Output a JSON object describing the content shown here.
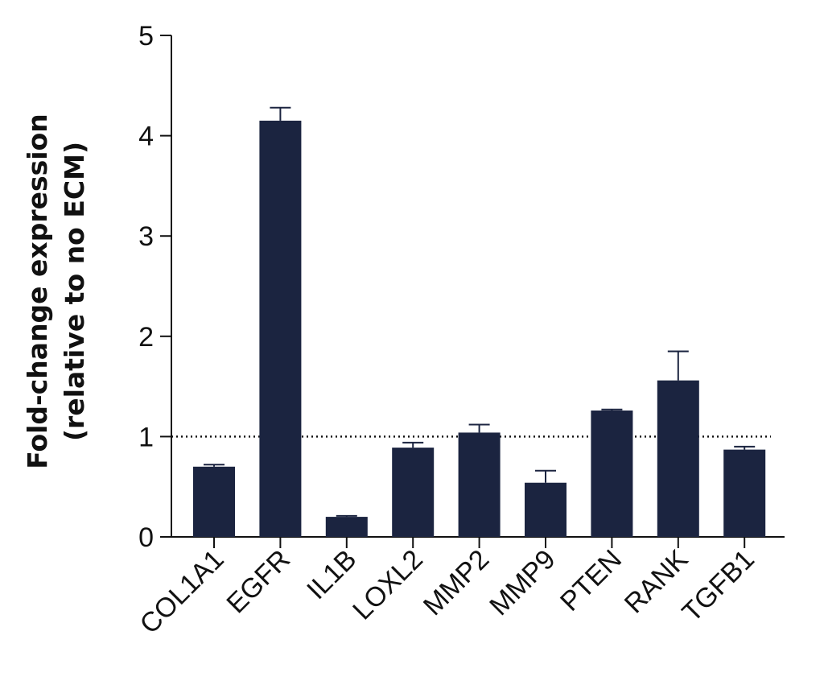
{
  "chart_data": {
    "type": "bar",
    "categories": [
      "COL1A1",
      "EGFR",
      "IL1B",
      "LOXL2",
      "MMP2",
      "MMP9",
      "PTEN",
      "RANK",
      "TGFB1"
    ],
    "values": [
      0.7,
      4.15,
      0.2,
      0.89,
      1.04,
      0.54,
      1.26,
      1.56,
      0.87
    ],
    "error_upper": [
      0.02,
      0.13,
      0.01,
      0.05,
      0.08,
      0.12,
      0.01,
      0.29,
      0.03
    ],
    "title": "",
    "xlabel": "",
    "ylabel_lines": [
      "Fold-change expression",
      "(relative to no ECM)"
    ],
    "ylim": [
      0,
      5
    ],
    "yticks": [
      0,
      1,
      2,
      3,
      4,
      5
    ],
    "reference_line": {
      "y": 1,
      "style": "dotted"
    },
    "bar_color": "#1b2440",
    "grid": false,
    "legend": "none"
  }
}
